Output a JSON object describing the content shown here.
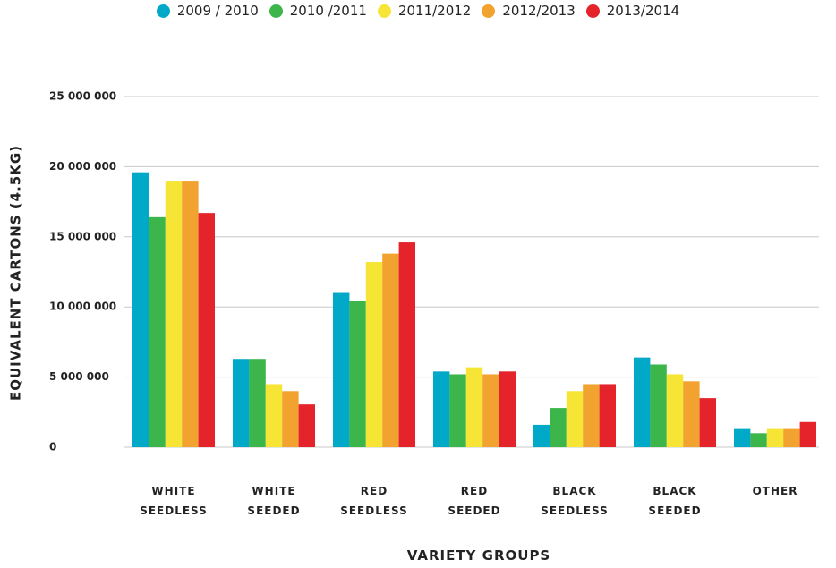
{
  "chart_data": {
    "type": "bar",
    "y_label": "EQUIVALENT CARTONS (4.5KG)",
    "x_label": "VARIETY GROUPS",
    "categories": [
      "WHITE SEEDLESS",
      "WHITE SEEDED",
      "RED SEEDLESS",
      "RED SEEDED",
      "BLACK SEEDLESS",
      "BLACK SEEDED",
      "OTHER"
    ],
    "series": [
      {
        "name": "2009 / 2010",
        "color": "#00a9c8",
        "values": [
          19600000,
          6300000,
          11000000,
          5400000,
          1600000,
          6400000,
          1300000
        ]
      },
      {
        "name": "2010 /2011",
        "color": "#3cb54a",
        "values": [
          16400000,
          6300000,
          10400000,
          5200000,
          2800000,
          5900000,
          1000000
        ]
      },
      {
        "name": "2011/2012",
        "color": "#f6e534",
        "values": [
          19000000,
          4500000,
          13200000,
          5700000,
          4000000,
          5200000,
          1300000
        ]
      },
      {
        "name": "2012/2013",
        "color": "#f1a22f",
        "values": [
          19000000,
          4000000,
          13800000,
          5200000,
          4500000,
          4700000,
          1300000
        ]
      },
      {
        "name": "2013/2014",
        "color": "#e4232b",
        "values": [
          16700000,
          3050000,
          14600000,
          5400000,
          4500000,
          3500000,
          1800000
        ]
      }
    ],
    "ylim": [
      0,
      25000000
    ],
    "yticks": [
      0,
      {
        "value": 5000000,
        "label": "5 000 000"
      },
      {
        "value": 10000000,
        "label": "10 000 000"
      },
      {
        "value": 15000000,
        "label": "15 000 000"
      },
      {
        "value": 20000000,
        "label": "20 000 000"
      },
      {
        "value": 25000000,
        "label": "25 000 000"
      }
    ],
    "grid": true,
    "legend": "top"
  }
}
